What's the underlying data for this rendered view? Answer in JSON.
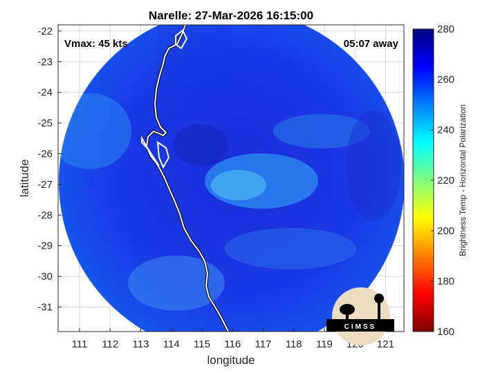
{
  "chart_data": {
    "type": "heatmap",
    "title": "Narelle: 27-Mar-2026 16:15:00",
    "xlabel": "longitude",
    "ylabel": "latitude",
    "xlim": [
      110.3,
      121.6
    ],
    "ylim": [
      -31.8,
      -21.8
    ],
    "xticks": [
      111,
      112,
      113,
      114,
      115,
      116,
      117,
      118,
      119,
      120,
      121
    ],
    "yticks": [
      -22,
      -23,
      -24,
      -25,
      -26,
      -27,
      -28,
      -29,
      -30,
      -31
    ],
    "grid": true,
    "annotations": {
      "vmax": "Vmax: 45 kts",
      "distance": "05:07 away"
    },
    "colorbar": {
      "label": "Brightness Temp - Horizontal Polarization",
      "range": [
        160,
        280
      ],
      "ticks": [
        160,
        180,
        200,
        220,
        240,
        260,
        280
      ],
      "colormap": "jet"
    },
    "swath": {
      "center": [
        116.1,
        -26.75
      ],
      "radius_deg": 5.5,
      "background_tb": 262,
      "features": [
        {
          "desc": "storm center warm band",
          "lon": 117.0,
          "lat": -26.9,
          "tb": 242
        },
        {
          "desc": "northern arc",
          "lon": 118.6,
          "lat": -25.3,
          "tb": 246
        },
        {
          "desc": "southern warm patch",
          "lon": 113.7,
          "lat": -30.3,
          "tb": 245
        },
        {
          "desc": "western land edge",
          "lon": 111.0,
          "lat": -25.5,
          "tb": 248
        }
      ]
    },
    "logo_text": "CIMSS"
  }
}
